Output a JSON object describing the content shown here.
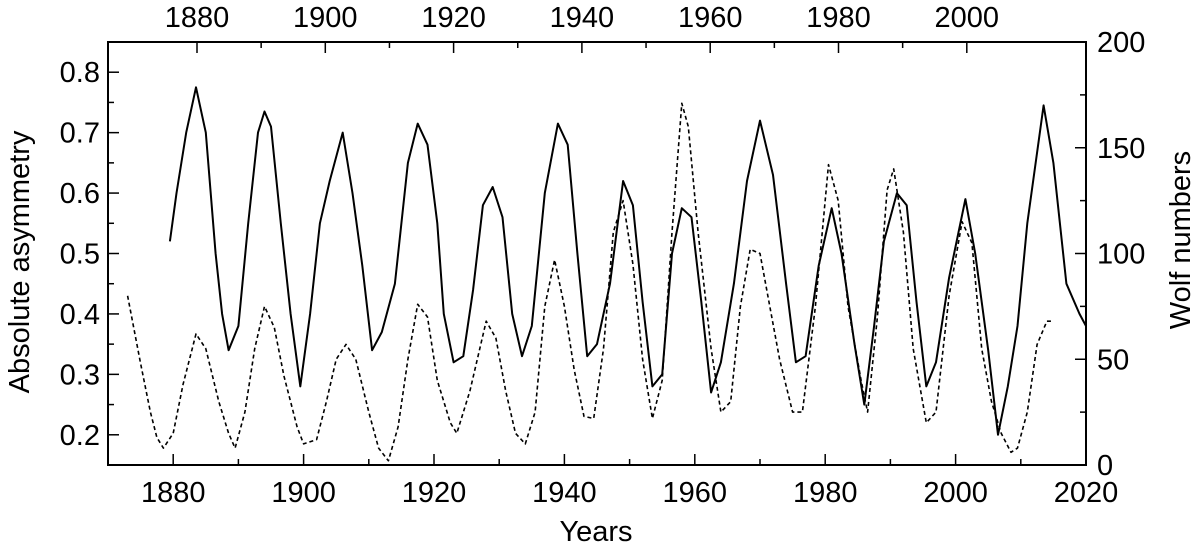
{
  "chart_data": {
    "type": "line",
    "title": "",
    "xlabel": "Years",
    "ylabel": "Absolute asymmetry",
    "y2label": "Wolf numbers",
    "xlim": [
      1870,
      2020
    ],
    "ylim": [
      0.15,
      0.85
    ],
    "y2lim": [
      0,
      200
    ],
    "x_ticks": [
      "1880",
      "1900",
      "1920",
      "1940",
      "1960",
      "1980",
      "2000",
      "2020"
    ],
    "top_x_ticks": [
      "1880",
      "1900",
      "1920",
      "1940",
      "1960",
      "1980",
      "2000"
    ],
    "y_ticks": [
      "0.2",
      "0.3",
      "0.4",
      "0.5",
      "0.6",
      "0.7",
      "0.8"
    ],
    "y2_ticks": [
      "0",
      "50",
      "100",
      "150",
      "200"
    ],
    "grid": false,
    "legend": "none",
    "series": [
      {
        "axis": "left",
        "style": "solid",
        "color": "#000000",
        "points": [
          [
            1879.5,
            0.52
          ],
          [
            1880.5,
            0.6
          ],
          [
            1882,
            0.7
          ],
          [
            1883.5,
            0.775
          ],
          [
            1885,
            0.7
          ],
          [
            1886.5,
            0.5
          ],
          [
            1887.5,
            0.4
          ],
          [
            1888.5,
            0.34
          ],
          [
            1890,
            0.38
          ],
          [
            1891.5,
            0.55
          ],
          [
            1893,
            0.7
          ],
          [
            1894,
            0.735
          ],
          [
            1895,
            0.71
          ],
          [
            1896.5,
            0.55
          ],
          [
            1898,
            0.4
          ],
          [
            1899.5,
            0.28
          ],
          [
            1901,
            0.4
          ],
          [
            1902.5,
            0.55
          ],
          [
            1904,
            0.62
          ],
          [
            1906,
            0.7
          ],
          [
            1907.5,
            0.6
          ],
          [
            1909,
            0.48
          ],
          [
            1910.5,
            0.34
          ],
          [
            1912,
            0.37
          ],
          [
            1914,
            0.45
          ],
          [
            1916,
            0.65
          ],
          [
            1917.5,
            0.715
          ],
          [
            1919,
            0.68
          ],
          [
            1920.5,
            0.55
          ],
          [
            1921.5,
            0.4
          ],
          [
            1923,
            0.32
          ],
          [
            1924.5,
            0.33
          ],
          [
            1926,
            0.44
          ],
          [
            1927.5,
            0.58
          ],
          [
            1929,
            0.61
          ],
          [
            1930.5,
            0.56
          ],
          [
            1932,
            0.4
          ],
          [
            1933.5,
            0.33
          ],
          [
            1935,
            0.38
          ],
          [
            1937,
            0.6
          ],
          [
            1939,
            0.715
          ],
          [
            1940.5,
            0.68
          ],
          [
            1942,
            0.5
          ],
          [
            1943.5,
            0.33
          ],
          [
            1945,
            0.35
          ],
          [
            1947,
            0.45
          ],
          [
            1949,
            0.62
          ],
          [
            1950.5,
            0.58
          ],
          [
            1952,
            0.42
          ],
          [
            1953.5,
            0.28
          ],
          [
            1955,
            0.3
          ],
          [
            1956.5,
            0.5
          ],
          [
            1958,
            0.575
          ],
          [
            1959.5,
            0.56
          ],
          [
            1961,
            0.42
          ],
          [
            1962.5,
            0.27
          ],
          [
            1964,
            0.32
          ],
          [
            1966,
            0.45
          ],
          [
            1968,
            0.62
          ],
          [
            1970,
            0.72
          ],
          [
            1972,
            0.63
          ],
          [
            1974,
            0.45
          ],
          [
            1975.5,
            0.32
          ],
          [
            1977,
            0.33
          ],
          [
            1979,
            0.48
          ],
          [
            1981,
            0.575
          ],
          [
            1982.5,
            0.5
          ],
          [
            1984.5,
            0.35
          ],
          [
            1986,
            0.25
          ],
          [
            1987.5,
            0.38
          ],
          [
            1989,
            0.52
          ],
          [
            1991,
            0.6
          ],
          [
            1992.5,
            0.58
          ],
          [
            1994,
            0.42
          ],
          [
            1995.5,
            0.28
          ],
          [
            1997,
            0.32
          ],
          [
            1999,
            0.46
          ],
          [
            2001.5,
            0.59
          ],
          [
            2003,
            0.5
          ],
          [
            2005,
            0.34
          ],
          [
            2006.5,
            0.2
          ],
          [
            2008,
            0.28
          ],
          [
            2009.5,
            0.38
          ],
          [
            2011,
            0.55
          ],
          [
            2013.5,
            0.745
          ],
          [
            2015,
            0.65
          ],
          [
            2017,
            0.45
          ],
          [
            2019,
            0.4
          ],
          [
            2020,
            0.38
          ]
        ]
      },
      {
        "axis": "right",
        "style": "dashed",
        "color": "#000000",
        "points": [
          [
            1873,
            80
          ],
          [
            1875,
            48
          ],
          [
            1876.5,
            25
          ],
          [
            1877.5,
            13
          ],
          [
            1878.5,
            8
          ],
          [
            1880,
            15
          ],
          [
            1881.5,
            38
          ],
          [
            1883.5,
            62
          ],
          [
            1885,
            55
          ],
          [
            1887,
            30
          ],
          [
            1888.5,
            15
          ],
          [
            1889.5,
            8
          ],
          [
            1891,
            25
          ],
          [
            1892.5,
            55
          ],
          [
            1894,
            75
          ],
          [
            1895.5,
            65
          ],
          [
            1897,
            42
          ],
          [
            1899,
            18
          ],
          [
            1900,
            10
          ],
          [
            1902,
            12
          ],
          [
            1903.5,
            30
          ],
          [
            1905,
            50
          ],
          [
            1906.5,
            57
          ],
          [
            1908,
            50
          ],
          [
            1910,
            25
          ],
          [
            1911.5,
            8
          ],
          [
            1913,
            2
          ],
          [
            1914.5,
            18
          ],
          [
            1916,
            50
          ],
          [
            1917.5,
            76
          ],
          [
            1919,
            70
          ],
          [
            1920.5,
            40
          ],
          [
            1922.5,
            20
          ],
          [
            1923.5,
            15
          ],
          [
            1925.5,
            35
          ],
          [
            1928,
            68
          ],
          [
            1929.5,
            60
          ],
          [
            1931,
            35
          ],
          [
            1932.5,
            15
          ],
          [
            1934,
            10
          ],
          [
            1935.5,
            25
          ],
          [
            1937,
            75
          ],
          [
            1938.5,
            97
          ],
          [
            1940,
            75
          ],
          [
            1941.5,
            45
          ],
          [
            1943,
            23
          ],
          [
            1944.5,
            22
          ],
          [
            1946,
            55
          ],
          [
            1947.5,
            110
          ],
          [
            1949,
            125
          ],
          [
            1950.5,
            95
          ],
          [
            1952,
            50
          ],
          [
            1953.5,
            22
          ],
          [
            1955,
            40
          ],
          [
            1956.5,
            110
          ],
          [
            1958,
            171
          ],
          [
            1959,
            160
          ],
          [
            1960.5,
            110
          ],
          [
            1962.5,
            55
          ],
          [
            1964,
            25
          ],
          [
            1965.5,
            30
          ],
          [
            1967,
            75
          ],
          [
            1968.5,
            102
          ],
          [
            1970,
            100
          ],
          [
            1971.5,
            75
          ],
          [
            1973,
            50
          ],
          [
            1975,
            25
          ],
          [
            1976.5,
            25
          ],
          [
            1978.5,
            75
          ],
          [
            1980.5,
            142
          ],
          [
            1982,
            125
          ],
          [
            1983.5,
            75
          ],
          [
            1985.5,
            40
          ],
          [
            1986.5,
            25
          ],
          [
            1988,
            70
          ],
          [
            1989.5,
            130
          ],
          [
            1990.5,
            140
          ],
          [
            1992,
            110
          ],
          [
            1993.5,
            55
          ],
          [
            1995.5,
            20
          ],
          [
            1997,
            25
          ],
          [
            1999,
            80
          ],
          [
            2001,
            115
          ],
          [
            2002.5,
            105
          ],
          [
            2004,
            55
          ],
          [
            2005.5,
            30
          ],
          [
            2007,
            15
          ],
          [
            2008.5,
            6
          ],
          [
            2009.5,
            8
          ],
          [
            2011,
            25
          ],
          [
            2012.5,
            57
          ],
          [
            2014,
            68
          ],
          [
            2015,
            68
          ]
        ]
      }
    ]
  }
}
